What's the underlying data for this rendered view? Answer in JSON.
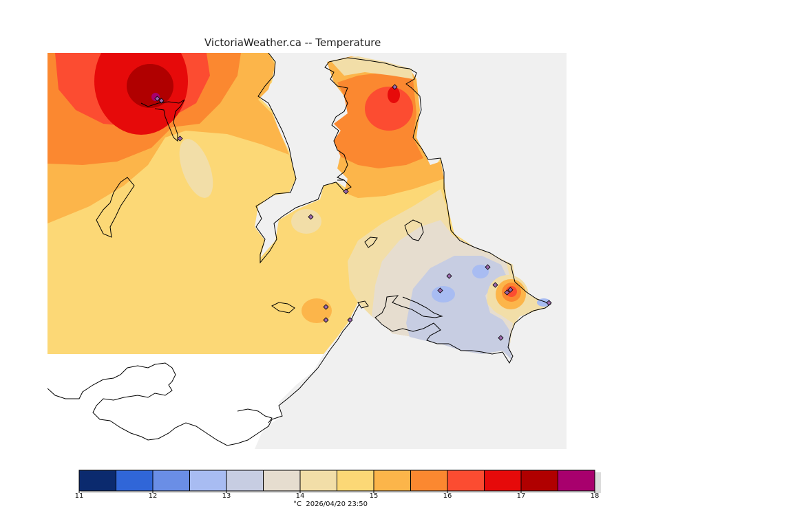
{
  "title": "VictoriaWeather.ca -- Temperature",
  "footer": {
    "unit": "°C",
    "datetime": "2026/04/20 23:50"
  },
  "colorbar": {
    "ticks": [
      "11",
      "12",
      "13",
      "14",
      "15",
      "16",
      "17",
      "18"
    ],
    "min": 11,
    "max": 18,
    "step": 0.5,
    "colors": [
      "#0b2a6e",
      "#3066d8",
      "#6a8ee6",
      "#a8bcf2",
      "#c7cde2",
      "#e6ddcf",
      "#f2dea8",
      "#fcd876",
      "#fcb54a",
      "#fb8830",
      "#fc4c31",
      "#e60a0a",
      "#b00000",
      "#a8006d"
    ]
  },
  "legend_colors": {
    "water_background": "#f0f0f0",
    "out_of_range_land": "#ffffff",
    "coastline": "#000000",
    "station_marker": "#9966aa"
  }
}
